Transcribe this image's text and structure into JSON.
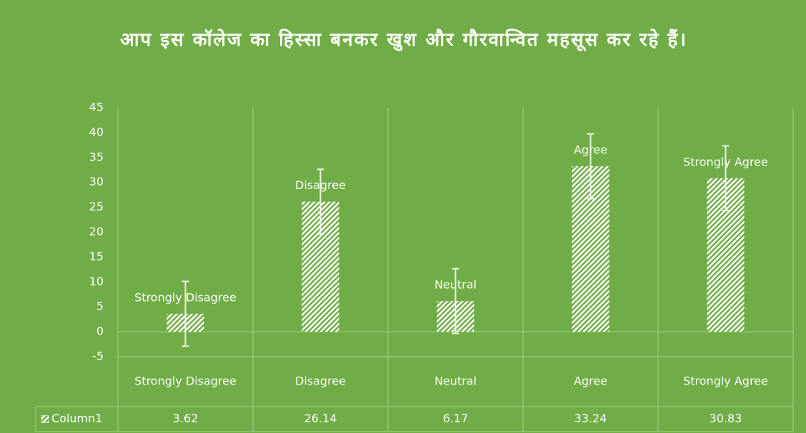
{
  "chart_data": {
    "type": "bar",
    "title": "आप इस कॉलेज का हिस्सा बनकर खुश और गौरवान्वित महसूस कर रहे हैं।",
    "categories": [
      "Strongly Disagree",
      "Disagree",
      "Neutral",
      "Agree",
      "Strongly Agree"
    ],
    "series": [
      {
        "name": "Column1",
        "color": "#ffffff",
        "values": [
          3.62,
          26.14,
          6.17,
          33.24,
          30.83
        ],
        "errors": [
          6.5,
          6.5,
          6.5,
          6.5,
          6.5
        ]
      }
    ],
    "ylim": [
      -5,
      45
    ],
    "yticks": [
      -5,
      0,
      5,
      10,
      15,
      20,
      25,
      30,
      35,
      40,
      45
    ],
    "grid": true,
    "data_table": true
  }
}
